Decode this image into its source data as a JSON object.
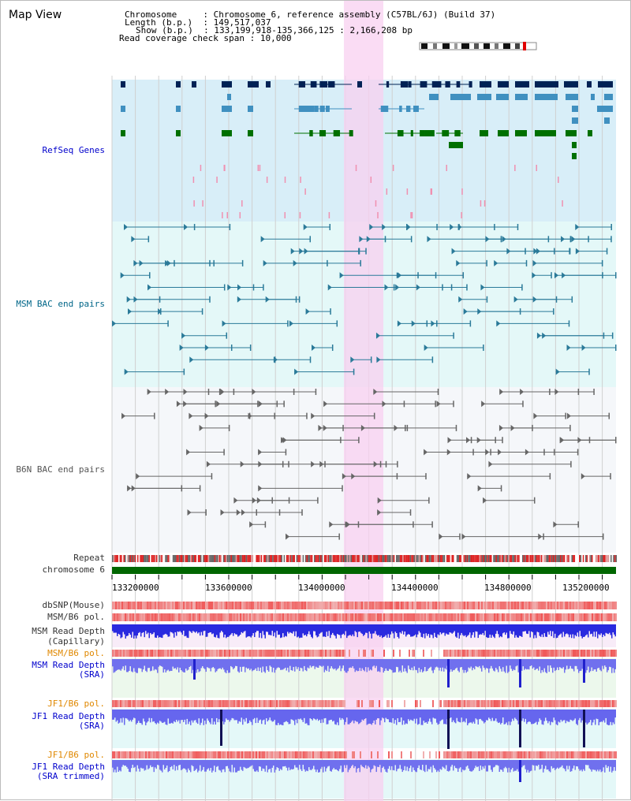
{
  "title": "Map View",
  "info": {
    "chromosome_key": "Chromosome",
    "chromosome_value": "Chromosome 6, reference assembly (C57BL/6J) (Build 37)",
    "length_key": "Length (b.p.)",
    "length_value": "149,517,037",
    "show_key": "Show (b.p.)",
    "show_value": "133,199,918-135,366,125 : 2,166,208 bp",
    "coverage_key": "Read coverage check span",
    "coverage_value": "10,000"
  },
  "tracks": {
    "refseq": "RefSeq Genes",
    "msm_bac": "MSM BAC end pairs",
    "b6n_bac": "B6N BAC end pairs",
    "repeat": "Repeat",
    "chromosome": "chromosome 6",
    "dbsnp": "dbSNP(Mouse)",
    "msm_b6_pol_1": "MSM/B6 pol.",
    "msm_depth_cap_1": "MSM Read Depth",
    "msm_depth_cap_2": "(Capillary)",
    "msm_b6_pol_2": "MSM/B6 pol.",
    "msm_depth_sra_1": "MSM Read Depth",
    "msm_depth_sra_2": "(SRA)",
    "jf1_b6_pol_1": "JF1/B6 pol.",
    "jf1_depth_sra_1": "JF1 Read Depth",
    "jf1_depth_sra_2": "(SRA)",
    "jf1_b6_pol_2": "JF1/B6 pol.",
    "jf1_depth_trim_1": "JF1 Read Depth",
    "jf1_depth_trim_2": "(SRA trimmed)"
  },
  "axis": {
    "ticks": [
      "133200000",
      "133600000",
      "134000000",
      "134400000",
      "134800000",
      "135200000"
    ]
  },
  "colors": {
    "refseq_bg": "#d8eef8",
    "bac_bg": "#e4f8f8",
    "highlight": "#f8d0f0",
    "chromosome": "#006600",
    "depth": "#6060ee",
    "pol": "#f08080"
  }
}
